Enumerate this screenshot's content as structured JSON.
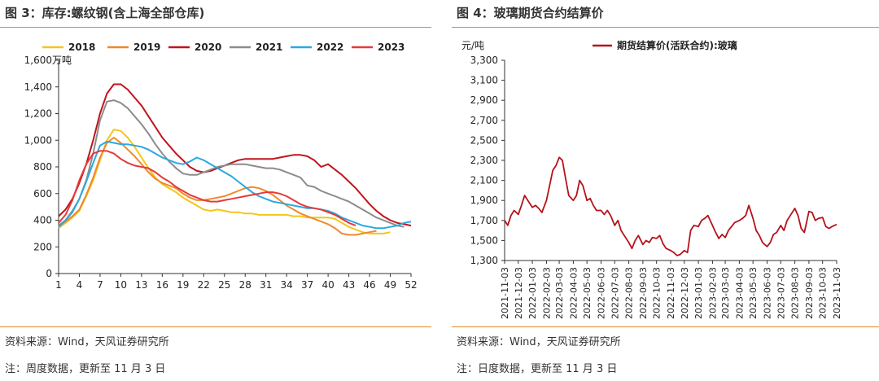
{
  "left": {
    "title": "图 3：库存:螺纹钢(含上海全部仓库)",
    "source": "资料来源：Wind，天风证券研究所",
    "note": "注：周度数据，更新至 11 月 3 日"
  },
  "right": {
    "title": "图 4：玻璃期货合约结算价",
    "source": "资料来源：Wind，天风证券研究所",
    "note": "注：日度数据，更新至 11 月 3 日"
  },
  "colors": {
    "accent_rule": "#e0892a"
  },
  "chart_data": [
    {
      "type": "line",
      "title": "图 3：库存:螺纹钢(含上海全部仓库)",
      "unit_label": "万吨",
      "xlabel": "",
      "ylabel": "",
      "x": [
        1,
        2,
        3,
        4,
        5,
        6,
        7,
        8,
        9,
        10,
        11,
        12,
        13,
        14,
        15,
        16,
        17,
        18,
        19,
        20,
        21,
        22,
        23,
        24,
        25,
        26,
        27,
        28,
        29,
        30,
        31,
        32,
        33,
        34,
        35,
        36,
        37,
        38,
        39,
        40,
        41,
        42,
        43,
        44,
        45,
        46,
        47,
        48,
        49,
        50,
        51,
        52
      ],
      "xticks": [
        1,
        4,
        7,
        10,
        13,
        16,
        19,
        22,
        25,
        28,
        31,
        34,
        37,
        40,
        43,
        46,
        49,
        52
      ],
      "ylim": [
        0,
        1600
      ],
      "yticks": [
        0,
        200,
        400,
        600,
        800,
        1000,
        1200,
        1400,
        1600
      ],
      "ytick_labels": [
        "0",
        "200",
        "400",
        "600",
        "800",
        "1,000",
        "1,200",
        "1,400",
        "1,600"
      ],
      "legend_position": "top",
      "series": [
        {
          "name": "2018",
          "color": "#f5c518",
          "values": [
            340,
            380,
            420,
            470,
            580,
            700,
            850,
            1000,
            1080,
            1070,
            1020,
            950,
            870,
            790,
            720,
            670,
            640,
            610,
            570,
            540,
            510,
            480,
            470,
            480,
            470,
            460,
            460,
            450,
            450,
            440,
            440,
            440,
            440,
            440,
            430,
            430,
            420,
            420,
            420,
            420,
            410,
            380,
            350,
            330,
            310,
            300,
            300,
            300,
            310,
            null,
            null,
            null
          ]
        },
        {
          "name": "2019",
          "color": "#f0892e",
          "values": [
            350,
            390,
            430,
            480,
            590,
            720,
            870,
            980,
            1020,
            980,
            930,
            880,
            820,
            760,
            710,
            680,
            660,
            640,
            600,
            570,
            550,
            550,
            560,
            570,
            580,
            600,
            620,
            640,
            650,
            640,
            620,
            590,
            550,
            510,
            480,
            450,
            430,
            410,
            390,
            370,
            340,
            300,
            290,
            290,
            300,
            310,
            320,
            null,
            null,
            null,
            null,
            null
          ]
        },
        {
          "name": "2020",
          "color": "#c0141c",
          "values": [
            430,
            480,
            560,
            680,
            820,
            1000,
            1200,
            1350,
            1420,
            1420,
            1380,
            1320,
            1260,
            1180,
            1100,
            1020,
            960,
            900,
            850,
            800,
            770,
            760,
            770,
            790,
            810,
            830,
            850,
            860,
            860,
            860,
            860,
            860,
            870,
            880,
            890,
            890,
            880,
            850,
            800,
            820,
            780,
            740,
            690,
            640,
            580,
            520,
            470,
            430,
            400,
            380,
            370,
            360
          ]
        },
        {
          "name": "2021",
          "color": "#8c8c8c",
          "values": [
            360,
            400,
            470,
            560,
            700,
            900,
            1150,
            1290,
            1300,
            1280,
            1240,
            1180,
            1120,
            1050,
            970,
            900,
            840,
            790,
            750,
            740,
            740,
            760,
            780,
            800,
            810,
            820,
            820,
            820,
            810,
            800,
            790,
            790,
            780,
            760,
            740,
            720,
            660,
            650,
            620,
            600,
            580,
            560,
            540,
            510,
            480,
            450,
            420,
            400,
            380,
            360,
            350,
            null
          ]
        },
        {
          "name": "2022",
          "color": "#29a9e1",
          "values": [
            350,
            400,
            460,
            560,
            690,
            830,
            960,
            990,
            980,
            970,
            970,
            960,
            950,
            930,
            900,
            870,
            850,
            830,
            820,
            840,
            870,
            850,
            820,
            790,
            760,
            730,
            690,
            650,
            610,
            580,
            560,
            540,
            530,
            520,
            510,
            500,
            490,
            490,
            480,
            470,
            450,
            420,
            400,
            380,
            360,
            350,
            340,
            340,
            350,
            360,
            380,
            390
          ]
        },
        {
          "name": "2023",
          "color": "#e63a3a",
          "values": [
            380,
            440,
            550,
            700,
            820,
            900,
            920,
            920,
            900,
            860,
            830,
            810,
            800,
            790,
            760,
            720,
            690,
            650,
            620,
            590,
            570,
            550,
            540,
            540,
            550,
            560,
            570,
            580,
            590,
            600,
            610,
            610,
            600,
            580,
            550,
            520,
            500,
            490,
            480,
            460,
            440,
            410,
            380,
            360,
            null,
            null,
            null,
            null,
            null,
            null,
            null,
            null
          ]
        }
      ]
    },
    {
      "type": "line",
      "title": "图 4：玻璃期货合约结算价",
      "unit_label": "元/吨",
      "xlabel": "",
      "ylabel": "",
      "ylim": [
        1300,
        3300
      ],
      "yticks": [
        1300,
        1500,
        1700,
        1900,
        2100,
        2300,
        2500,
        2700,
        2900,
        3100,
        3300
      ],
      "ytick_labels": [
        "1,300",
        "1,500",
        "1,700",
        "1,900",
        "2,100",
        "2,300",
        "2,500",
        "2,700",
        "2,900",
        "3,100",
        "3,300"
      ],
      "xtick_labels": [
        "2021-11-03",
        "2021-12-03",
        "2022-01-03",
        "2022-02-03",
        "2022-03-03",
        "2022-04-03",
        "2022-05-03",
        "2022-06-03",
        "2022-07-03",
        "2022-08-03",
        "2022-09-03",
        "2022-10-03",
        "2022-11-03",
        "2022-12-03",
        "2023-01-03",
        "2023-02-03",
        "2023-03-03",
        "2023-04-03",
        "2023-05-03",
        "2023-06-03",
        "2023-07-03",
        "2023-08-03",
        "2023-09-03",
        "2023-10-03",
        "2023-11-03"
      ],
      "legend_position": "top",
      "series": [
        {
          "name": "期货结算价(活跃合约):玻璃",
          "color": "#b5121b",
          "x": [
            "2021-11-03",
            "2021-11-10",
            "2021-11-17",
            "2021-11-24",
            "2021-12-03",
            "2021-12-10",
            "2021-12-17",
            "2021-12-24",
            "2022-01-03",
            "2022-01-10",
            "2022-01-17",
            "2022-01-24",
            "2022-02-03",
            "2022-02-10",
            "2022-02-17",
            "2022-02-24",
            "2022-03-03",
            "2022-03-10",
            "2022-03-17",
            "2022-03-24",
            "2022-04-03",
            "2022-04-10",
            "2022-04-17",
            "2022-04-24",
            "2022-05-03",
            "2022-05-10",
            "2022-05-17",
            "2022-05-24",
            "2022-06-03",
            "2022-06-10",
            "2022-06-17",
            "2022-06-24",
            "2022-07-03",
            "2022-07-10",
            "2022-07-17",
            "2022-07-24",
            "2022-08-03",
            "2022-08-10",
            "2022-08-17",
            "2022-08-24",
            "2022-09-03",
            "2022-09-10",
            "2022-09-17",
            "2022-09-24",
            "2022-10-03",
            "2022-10-10",
            "2022-10-17",
            "2022-10-24",
            "2022-11-03",
            "2022-11-10",
            "2022-11-17",
            "2022-11-24",
            "2022-12-03",
            "2022-12-10",
            "2022-12-17",
            "2022-12-24",
            "2023-01-03",
            "2023-01-10",
            "2023-01-17",
            "2023-01-24",
            "2023-02-03",
            "2023-02-10",
            "2023-02-17",
            "2023-02-24",
            "2023-03-03",
            "2023-03-10",
            "2023-03-17",
            "2023-03-24",
            "2023-04-03",
            "2023-04-10",
            "2023-04-17",
            "2023-04-24",
            "2023-05-03",
            "2023-05-10",
            "2023-05-17",
            "2023-05-24",
            "2023-06-03",
            "2023-06-10",
            "2023-06-17",
            "2023-06-24",
            "2023-07-03",
            "2023-07-10",
            "2023-07-17",
            "2023-07-24",
            "2023-08-03",
            "2023-08-10",
            "2023-08-17",
            "2023-08-24",
            "2023-09-03",
            "2023-09-10",
            "2023-09-17",
            "2023-09-24",
            "2023-10-03",
            "2023-10-10",
            "2023-10-17",
            "2023-10-24",
            "2023-11-03"
          ],
          "values": [
            1700,
            1650,
            1750,
            1800,
            1760,
            1850,
            1950,
            1900,
            1830,
            1850,
            1820,
            1780,
            1900,
            2050,
            2200,
            2250,
            2330,
            2300,
            2120,
            1950,
            1900,
            1950,
            2100,
            2050,
            1900,
            1920,
            1850,
            1800,
            1800,
            1760,
            1800,
            1750,
            1650,
            1700,
            1600,
            1550,
            1480,
            1420,
            1500,
            1550,
            1460,
            1500,
            1480,
            1530,
            1520,
            1550,
            1470,
            1420,
            1400,
            1380,
            1350,
            1360,
            1400,
            1380,
            1600,
            1650,
            1640,
            1700,
            1720,
            1750,
            1650,
            1580,
            1520,
            1560,
            1530,
            1600,
            1640,
            1680,
            1700,
            1720,
            1750,
            1850,
            1720,
            1600,
            1550,
            1480,
            1440,
            1480,
            1560,
            1580,
            1650,
            1600,
            1700,
            1750,
            1820,
            1750,
            1620,
            1580,
            1790,
            1780,
            1700,
            1720,
            1730,
            1640,
            1620,
            1640,
            1660
          ]
        }
      ]
    }
  ]
}
